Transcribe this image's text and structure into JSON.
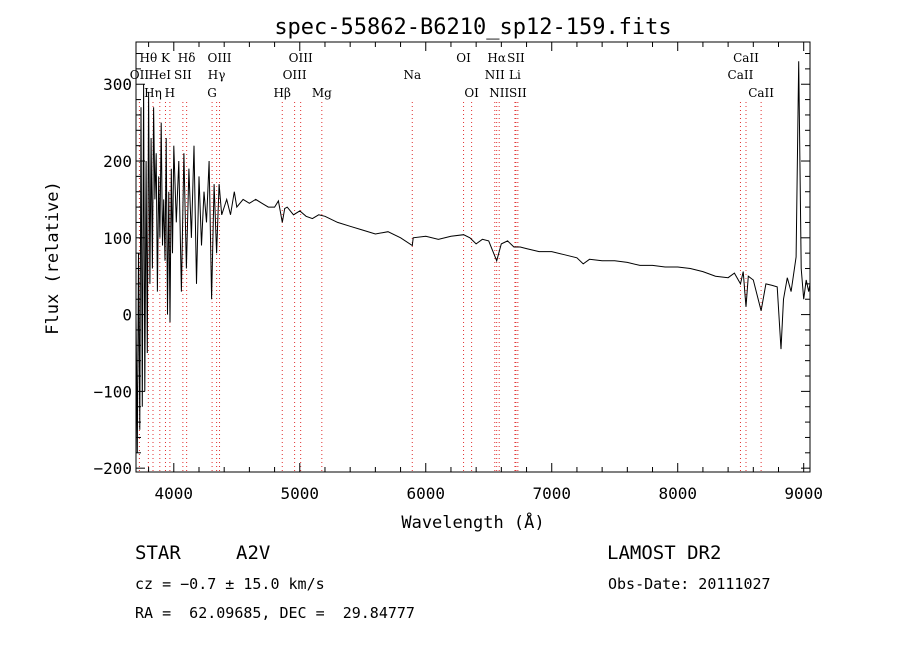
{
  "chart_data": {
    "type": "line",
    "title": "spec-55862-B6210_sp12-159.fits",
    "xlabel": "Wavelength (Å)",
    "ylabel": "Flux (relative)",
    "xlim": [
      3700,
      9050
    ],
    "ylim": [
      -205,
      355
    ],
    "xticks": [
      4000,
      5000,
      6000,
      7000,
      8000,
      9000
    ],
    "yticks": [
      -200,
      -100,
      0,
      100,
      200,
      300
    ],
    "grid": false,
    "series": [
      {
        "x": [
          3700,
          3710,
          3720,
          3730,
          3740,
          3750,
          3760,
          3770,
          3780,
          3790,
          3800,
          3810,
          3820,
          3830,
          3840,
          3850,
          3860,
          3870,
          3880,
          3890,
          3900,
          3910,
          3920,
          3930,
          3940,
          3950,
          3960,
          3970,
          3980,
          3990,
          4000,
          4020,
          4040,
          4060,
          4080,
          4100,
          4120,
          4140,
          4160,
          4180,
          4200,
          4220,
          4240,
          4260,
          4280,
          4300,
          4320,
          4340,
          4360,
          4380,
          4400,
          4420,
          4450,
          4480,
          4500,
          4550,
          4600,
          4650,
          4700,
          4750,
          4800,
          4830,
          4861,
          4880,
          4900,
          4950,
          5000,
          5050,
          5100,
          5150,
          5200,
          5300,
          5400,
          5500,
          5600,
          5700,
          5800,
          5893,
          5900,
          6000,
          6100,
          6200,
          6300,
          6350,
          6400,
          6450,
          6500,
          6563,
          6600,
          6650,
          6700,
          6750,
          6800,
          6900,
          7000,
          7100,
          7200,
          7250,
          7300,
          7400,
          7500,
          7600,
          7700,
          7800,
          7900,
          8000,
          8100,
          8200,
          8300,
          8400,
          8450,
          8498,
          8520,
          8542,
          8560,
          8600,
          8662,
          8700,
          8750,
          8790,
          8820,
          8840,
          8870,
          8900,
          8940,
          8960,
          8980,
          9000,
          9020,
          9040,
          9050
        ],
        "values": [
          0,
          -180,
          80,
          -150,
          270,
          -120,
          300,
          -100,
          200,
          -50,
          290,
          40,
          230,
          60,
          270,
          150,
          210,
          30,
          180,
          100,
          250,
          90,
          150,
          70,
          230,
          0,
          160,
          -10,
          190,
          80,
          220,
          120,
          200,
          30,
          210,
          60,
          190,
          100,
          220,
          40,
          180,
          90,
          160,
          120,
          200,
          20,
          170,
          80,
          170,
          130,
          140,
          150,
          130,
          160,
          140,
          150,
          145,
          150,
          145,
          140,
          140,
          148,
          120,
          138,
          140,
          130,
          135,
          128,
          125,
          130,
          128,
          120,
          115,
          110,
          105,
          108,
          100,
          90,
          100,
          102,
          98,
          102,
          104,
          100,
          92,
          98,
          96,
          70,
          92,
          96,
          88,
          88,
          86,
          82,
          82,
          78,
          74,
          66,
          72,
          70,
          70,
          68,
          64,
          64,
          62,
          62,
          60,
          56,
          50,
          48,
          54,
          40,
          56,
          10,
          50,
          45,
          5,
          40,
          38,
          36,
          -45,
          20,
          48,
          30,
          75,
          330,
          60,
          20,
          45,
          30,
          40
        ]
      }
    ],
    "spectral_lines": [
      {
        "label": "OII",
        "x": 3727,
        "row": 2
      },
      {
        "label": "Hθ",
        "x": 3798,
        "row": 1
      },
      {
        "label": "Hη",
        "x": 3835,
        "row": 3
      },
      {
        "label": "HeI",
        "x": 3889,
        "row": 2
      },
      {
        "label": "K",
        "x": 3934,
        "row": 1
      },
      {
        "label": "SII",
        "x": 4072,
        "row": 2
      },
      {
        "label": "H",
        "x": 3969,
        "row": 3
      },
      {
        "label": "Hδ",
        "x": 4102,
        "row": 1
      },
      {
        "label": "Hγ",
        "x": 4340,
        "row": 2
      },
      {
        "label": "G",
        "x": 4304,
        "row": 3
      },
      {
        "label": "OIII",
        "x": 4363,
        "row": 1
      },
      {
        "label": "Hβ",
        "x": 4861,
        "row": 3
      },
      {
        "label": "OIII",
        "x": 4959,
        "row": 2
      },
      {
        "label": "OIII",
        "x": 5007,
        "row": 1
      },
      {
        "label": "Mg",
        "x": 5175,
        "row": 3
      },
      {
        "label": "Na",
        "x": 5893,
        "row": 2
      },
      {
        "label": "OI",
        "x": 6300,
        "row": 1
      },
      {
        "label": "OI",
        "x": 6364,
        "row": 3
      },
      {
        "label": "NII",
        "x": 6548,
        "row": 2
      },
      {
        "label": "Hα",
        "x": 6563,
        "row": 1
      },
      {
        "label": "NII",
        "x": 6583,
        "row": 3
      },
      {
        "label": "Li",
        "x": 6708,
        "row": 2
      },
      {
        "label": "SII",
        "x": 6716,
        "row": 1
      },
      {
        "label": "SII",
        "x": 6731,
        "row": 3
      },
      {
        "label": "CaII",
        "x": 8498,
        "row": 2
      },
      {
        "label": "CaII",
        "x": 8542,
        "row": 1
      },
      {
        "label": "CaII",
        "x": 8662,
        "row": 3
      }
    ]
  },
  "info": {
    "object_class": "STAR",
    "subclass": "A2V",
    "survey": "LAMOST DR2",
    "cz": "cz = −0.7 ± 15.0 km/s",
    "obs_date": "Obs-Date: 20111027",
    "coords": "RA =  62.09685, DEC =  29.84777"
  }
}
